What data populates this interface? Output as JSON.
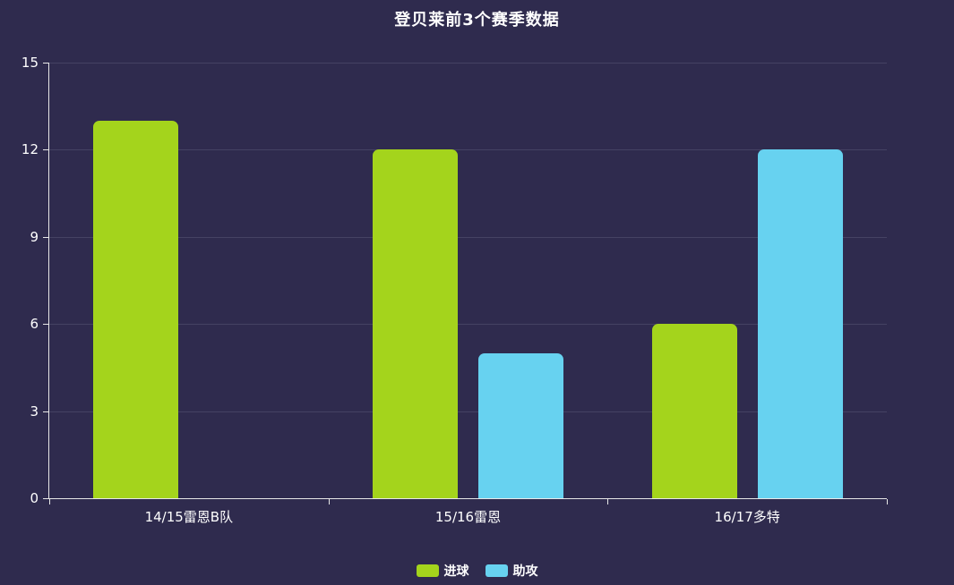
{
  "title": "登贝莱前3个赛季数据",
  "chart_data": {
    "type": "bar",
    "title": "登贝莱前3个赛季数据",
    "categories": [
      "14/15雷恩B队",
      "15/16雷恩",
      "16/17多特"
    ],
    "series": [
      {
        "name": "进球",
        "color": "#a4d41c",
        "values": [
          13,
          12,
          6
        ]
      },
      {
        "name": "助攻",
        "color": "#67d2f0",
        "values": [
          0,
          5,
          12
        ]
      }
    ],
    "xlabel": "",
    "ylabel": "",
    "ylim": [
      0,
      15
    ],
    "yticks": [
      0,
      3,
      6,
      9,
      12,
      15
    ],
    "grid": true,
    "legend_position": "bottom"
  },
  "colors": {
    "background": "#2f2b4e",
    "gridline": "#454263",
    "axis": "#e8e8e8",
    "text": "#ffffff"
  }
}
